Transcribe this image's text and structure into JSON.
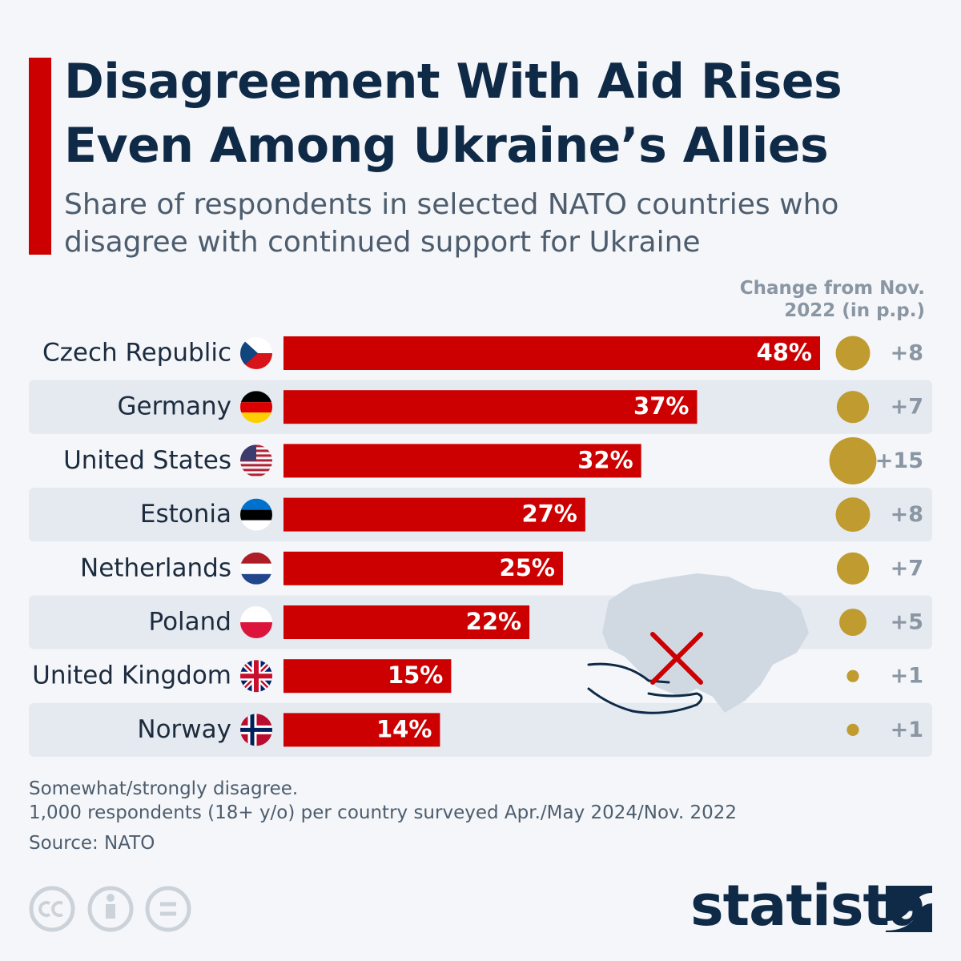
{
  "chart_data": {
    "type": "bar",
    "title": "Disagreement With Aid Rises Even Among Ukraine’s Allies",
    "subtitle": "Share of respondents in selected NATO countries who disagree with continued support for Ukraine",
    "categories": [
      "Czech Republic",
      "Germany",
      "United States",
      "Estonia",
      "Netherlands",
      "Poland",
      "United Kingdom",
      "Norway"
    ],
    "values": [
      48,
      37,
      32,
      27,
      25,
      22,
      15,
      14
    ],
    "value_labels": [
      "48%",
      "37%",
      "32%",
      "27%",
      "25%",
      "22%",
      "15%",
      "14%"
    ],
    "color": "#cc0000",
    "change": {
      "name": "Change from Nov. 2022 (in p.p.)",
      "color": "#bf9b30",
      "values": [
        8,
        7,
        15,
        8,
        7,
        5,
        1,
        1
      ],
      "value_labels": [
        "+8",
        "+7",
        "+15",
        "+8",
        "+7",
        "+5",
        "+1",
        "+1"
      ]
    },
    "notes": [
      "Somewhat/strongly disagree.",
      "1,000 respondents (18+ y/o) per country surveyed Apr./May 2024/Nov. 2022"
    ],
    "source": "Source: NATO",
    "brand": "statista"
  }
}
